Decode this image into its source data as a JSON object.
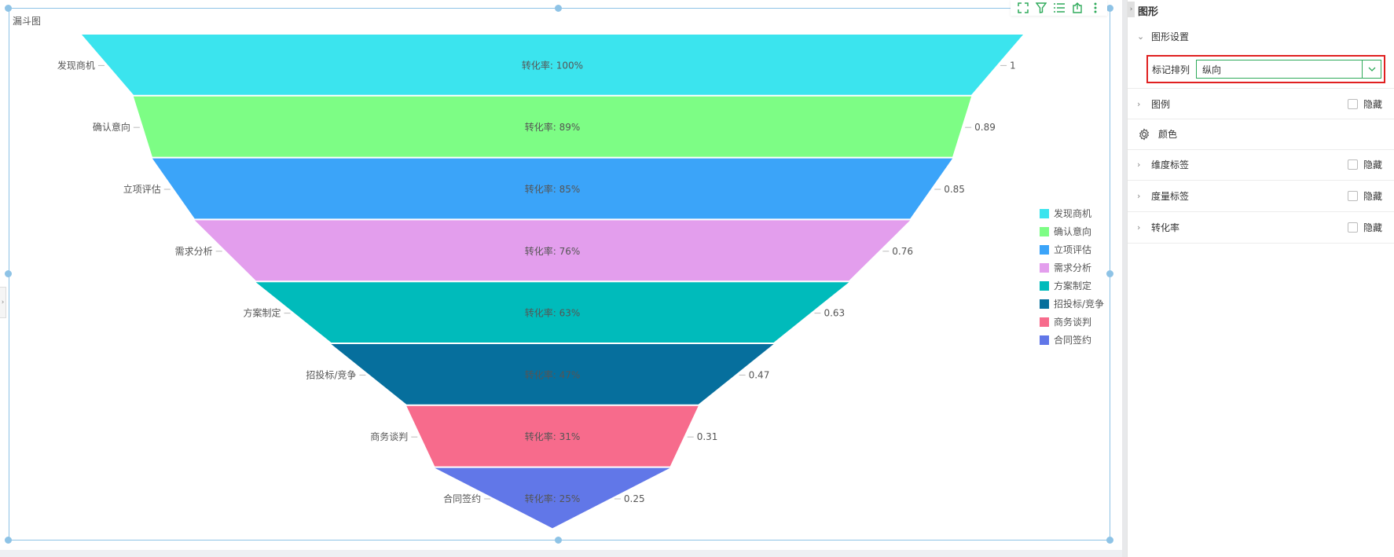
{
  "widget": {
    "title": "漏斗图"
  },
  "toolbar": {
    "icons": [
      "fullscreen-icon",
      "filter-icon",
      "list-icon",
      "export-icon",
      "more-vertical-icon"
    ]
  },
  "chart_data": {
    "type": "funnel",
    "title": "",
    "stages": [
      "发现商机",
      "确认意向",
      "立项评估",
      "需求分析",
      "方案制定",
      "招投标/竞争",
      "商务谈判",
      "合同签约"
    ],
    "values": [
      1,
      0.89,
      0.85,
      0.76,
      0.63,
      0.47,
      0.31,
      0.25
    ],
    "value_labels": [
      "1",
      "0.89",
      "0.85",
      "0.76",
      "0.63",
      "0.47",
      "0.31",
      "0.25"
    ],
    "conversion_labels": [
      "转化率: 100%",
      "转化率: 89%",
      "转化率: 85%",
      "转化率: 76%",
      "转化率: 63%",
      "转化率: 47%",
      "转化率: 31%",
      "转化率: 25%"
    ],
    "colors": [
      "#3be4ee",
      "#7dfd85",
      "#3ba4f9",
      "#e39eed",
      "#00bbbb",
      "#066f9d",
      "#f76b8c",
      "#6177e8"
    ],
    "legend_position": "right",
    "orientation": "vertical"
  },
  "legend": {
    "items": [
      "发现商机",
      "确认意向",
      "立项评估",
      "需求分析",
      "方案制定",
      "招投标/竞争",
      "商务谈判",
      "合同签约"
    ]
  },
  "panel": {
    "title": "图形",
    "sections": {
      "shape_settings": "图形设置",
      "mark_arrange_label": "标记排列",
      "mark_arrange_value": "纵向",
      "legend": "图例",
      "color": "颜色",
      "dimension_label": "维度标签",
      "measure_label": "度量标签",
      "conversion_rate": "转化率",
      "hide": "隐藏"
    }
  }
}
